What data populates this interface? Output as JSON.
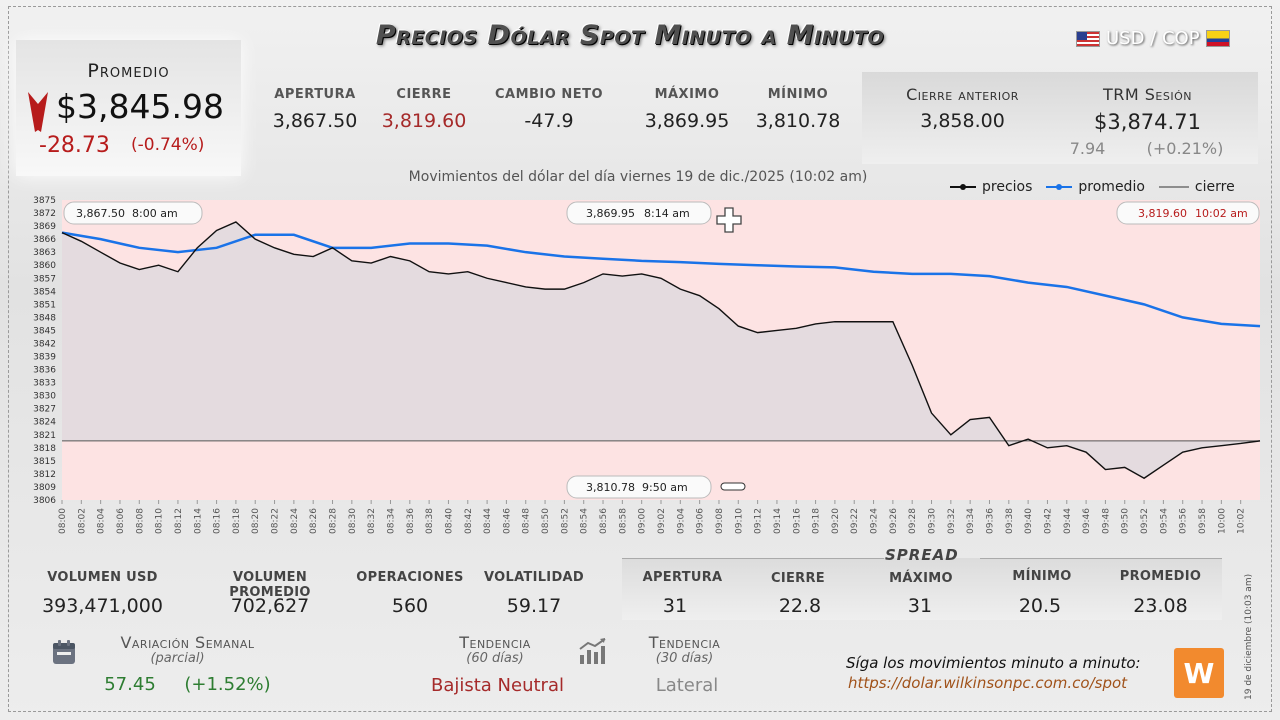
{
  "header": {
    "title": "Precios Dólar Spot Minuto a Minuto",
    "pair": "USD / COP"
  },
  "promedio": {
    "label": "Promedio",
    "value": "$3,845.98",
    "change": "-28.73",
    "change_pct": "(-0.74%)"
  },
  "stats": [
    {
      "label": "APERTURA",
      "value": "3,867.50",
      "highlight": false
    },
    {
      "label": "CIERRE",
      "value": "3,819.60",
      "highlight": true
    },
    {
      "label": "CAMBIO NETO",
      "value": "-47.9",
      "highlight": false
    },
    {
      "label": "MÁXIMO",
      "value": "3,869.95",
      "highlight": false
    },
    {
      "label": "MÍNIMO",
      "value": "3,810.78",
      "highlight": false
    }
  ],
  "cierre_anterior": {
    "label": "Cierre anterior",
    "value": "3,858.00"
  },
  "trm": {
    "label": "TRM Sesión",
    "value": "$3,874.71",
    "change": "7.94",
    "change_pct": "(+0.21%)"
  },
  "subtitle": "Movimientos del dólar del día viernes 19 de dic./2025 (10:02 am)",
  "legend": {
    "precios": "precios",
    "promedio": "promedio",
    "cierre": "cierre"
  },
  "colors": {
    "precios": "#111111",
    "promedio": "#1a73e8",
    "cierre": "#555555",
    "negative": "#b71c1c",
    "positive": "#2e7d32",
    "fill": "#fde3e3"
  },
  "annotations": {
    "open": {
      "value": "3,867.50",
      "time": "8:00 am"
    },
    "max": {
      "value": "3,869.95",
      "time": "8:14 am"
    },
    "close": {
      "value": "3,819.60",
      "time": "10:02 am"
    },
    "min": {
      "value": "3,810.78",
      "time": "9:50 am"
    }
  },
  "chart_data": {
    "type": "line",
    "ylim": [
      3806,
      3875
    ],
    "y_ticks": [
      3806,
      3809,
      3812,
      3815,
      3818,
      3821,
      3824,
      3827,
      3830,
      3833,
      3836,
      3839,
      3842,
      3845,
      3848,
      3851,
      3854,
      3857,
      3860,
      3863,
      3866,
      3869,
      3872,
      3875
    ],
    "x_ticks": [
      "08:00",
      "08:02",
      "08:04",
      "08:06",
      "08:08",
      "08:10",
      "08:12",
      "08:14",
      "08:16",
      "08:18",
      "08:20",
      "08:22",
      "08:24",
      "08:26",
      "08:28",
      "08:30",
      "08:32",
      "08:34",
      "08:36",
      "08:38",
      "08:40",
      "08:42",
      "08:44",
      "08:46",
      "08:48",
      "08:50",
      "08:52",
      "08:54",
      "08:56",
      "08:58",
      "09:00",
      "09:02",
      "09:04",
      "09:06",
      "09:08",
      "09:10",
      "09:12",
      "09:14",
      "09:16",
      "09:18",
      "09:20",
      "09:22",
      "09:24",
      "09:26",
      "09:28",
      "09:30",
      "09:32",
      "09:34",
      "09:36",
      "09:38",
      "09:40",
      "09:42",
      "09:44",
      "09:46",
      "09:48",
      "09:50",
      "09:52",
      "09:54",
      "09:56",
      "09:58",
      "10:00",
      "10:02"
    ],
    "closing_reference": 3819.6,
    "series": [
      {
        "name": "precios",
        "x": [
          0,
          1,
          2,
          3,
          4,
          5,
          6,
          7,
          8,
          9,
          10,
          11,
          12,
          13,
          14,
          15,
          16,
          17,
          18,
          19,
          20,
          21,
          22,
          23,
          24,
          25,
          26,
          27,
          28,
          29,
          30,
          31,
          32,
          33,
          34,
          35,
          36,
          37,
          38,
          39,
          40,
          41,
          42,
          43,
          44,
          45,
          46,
          47,
          48,
          49,
          50,
          51,
          52,
          53,
          54,
          55,
          56,
          57,
          58,
          59,
          60,
          61,
          62
        ],
        "y": [
          3867.5,
          3865.5,
          3863,
          3860.5,
          3859,
          3860,
          3858.5,
          3864,
          3868,
          3869.95,
          3866,
          3864,
          3862.5,
          3862,
          3864,
          3861,
          3860.5,
          3862,
          3861,
          3858.5,
          3858,
          3858.5,
          3857,
          3856,
          3855,
          3854.5,
          3854.5,
          3856,
          3858,
          3857.5,
          3858,
          3857,
          3854.5,
          3853,
          3850,
          3846,
          3844.5,
          3845,
          3845.5,
          3846.5,
          3847,
          3847,
          3847,
          3847,
          3837,
          3826,
          3821,
          3824.5,
          3825,
          3818.5,
          3820,
          3818,
          3818.5,
          3817,
          3813,
          3813.5,
          3811,
          3814,
          3817,
          3818,
          3818.5,
          3819,
          3819.6
        ]
      },
      {
        "name": "promedio",
        "x": [
          0,
          2,
          4,
          6,
          8,
          10,
          12,
          14,
          16,
          18,
          20,
          22,
          24,
          26,
          28,
          30,
          32,
          34,
          36,
          38,
          40,
          42,
          44,
          46,
          48,
          50,
          52,
          54,
          56,
          58,
          60,
          62
        ],
        "y": [
          3867.5,
          3866,
          3864,
          3863,
          3864,
          3867,
          3867,
          3864,
          3864,
          3865,
          3865,
          3864.5,
          3863,
          3862,
          3861.5,
          3861,
          3860.7,
          3860.3,
          3860,
          3859.7,
          3859.5,
          3858.5,
          3858,
          3858,
          3857.5,
          3856,
          3855,
          3853,
          3851,
          3848,
          3846.5,
          3846
        ]
      },
      {
        "name": "cierre",
        "x": [
          0,
          62
        ],
        "y": [
          3819.6,
          3819.6
        ]
      }
    ]
  },
  "bottom_stats": [
    {
      "label": "VOLUMEN USD",
      "value": "393,471,000"
    },
    {
      "label": "VOLUMEN PROMEDIO",
      "value": "702,627"
    },
    {
      "label": "OPERACIONES",
      "value": "560"
    },
    {
      "label": "VOLATILIDAD",
      "value": "59.17"
    }
  ],
  "spread": {
    "title": "SPREAD",
    "items": [
      {
        "label": "APERTURA",
        "value": "31"
      },
      {
        "label": "CIERRE",
        "value": "22.8"
      },
      {
        "label": "MÁXIMO",
        "value": "31"
      },
      {
        "label": "MÍNIMO",
        "value": "20.5"
      },
      {
        "label": "PROMEDIO",
        "value": "23.08"
      }
    ]
  },
  "variacion": {
    "label": "Variación Semanal",
    "sub": "(parcial)",
    "value": "57.45",
    "pct": "(+1.52%)"
  },
  "tendencia60": {
    "label": "Tendencia",
    "sub": "(60 días)",
    "value": "Bajista Neutral"
  },
  "tendencia30": {
    "label": "Tendencia",
    "sub": "(30 días)",
    "value": "Lateral"
  },
  "footer": {
    "line1": "Síga los movimientos minuto a minuto:",
    "url": "https://dolar.wilkinsonpc.com.co/spot",
    "vertical": "19 de diciembre (10:03 am)"
  }
}
